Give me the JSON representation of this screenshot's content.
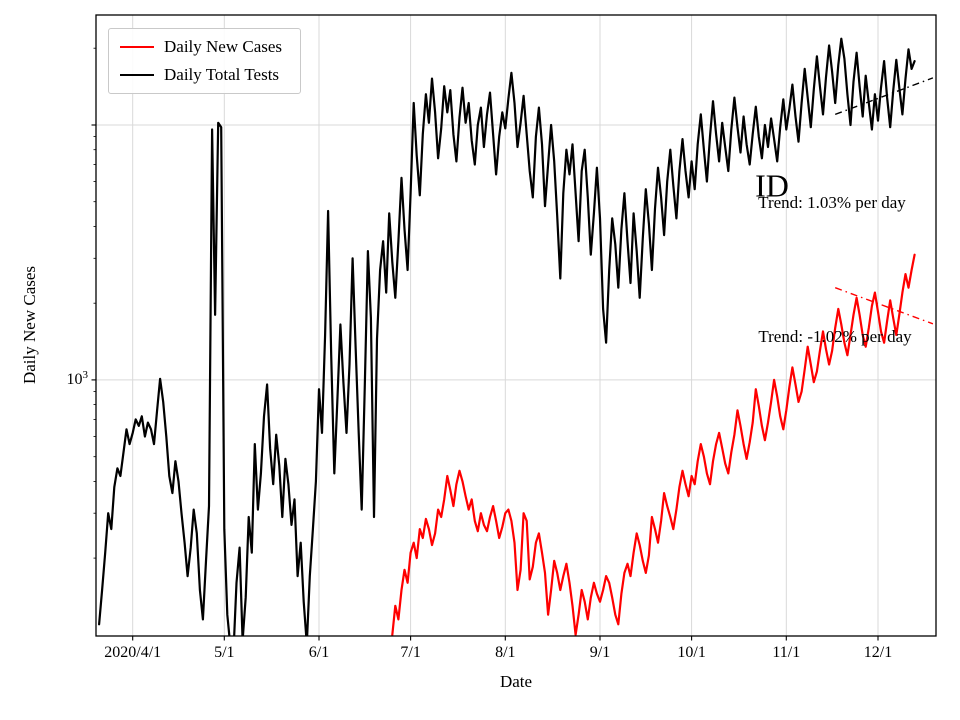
{
  "figure": {
    "background": "#ffffff"
  },
  "chart_data": {
    "type": "line",
    "title": "",
    "xlabel": "Date",
    "ylabel": "Daily New Cases",
    "yscale": "log",
    "ylim": [
      99,
      27000
    ],
    "xlim_days": [
      -12,
      263
    ],
    "x_epoch": "2020-04-01",
    "grid": true,
    "grid_color": "#d9d9d9",
    "axis_color": "#000000",
    "legend_position": "upper-left",
    "x_ticks": [
      {
        "day": 0,
        "label": "2020/4/1"
      },
      {
        "day": 30,
        "label": "5/1"
      },
      {
        "day": 61,
        "label": "6/1"
      },
      {
        "day": 91,
        "label": "7/1"
      },
      {
        "day": 122,
        "label": "8/1"
      },
      {
        "day": 153,
        "label": "9/1"
      },
      {
        "day": 183,
        "label": "10/1"
      },
      {
        "day": 214,
        "label": "11/1"
      },
      {
        "day": 244,
        "label": "12/1"
      }
    ],
    "y_ticks": [
      {
        "value": 1000,
        "base": "10",
        "exp": "3"
      }
    ],
    "y_grid": [
      1000,
      10000
    ],
    "series": [
      {
        "name": "Daily New Cases",
        "color": "#ff0000",
        "start_day": 85,
        "step": 1,
        "values": [
          100,
          130,
          115,
          150,
          180,
          160,
          210,
          230,
          200,
          260,
          240,
          285,
          260,
          225,
          250,
          310,
          290,
          340,
          420,
          370,
          320,
          390,
          440,
          400,
          350,
          310,
          340,
          280,
          255,
          300,
          270,
          255,
          290,
          320,
          280,
          240,
          265,
          300,
          310,
          280,
          230,
          150,
          180,
          300,
          280,
          165,
          185,
          230,
          250,
          210,
          175,
          120,
          150,
          195,
          175,
          150,
          170,
          190,
          160,
          130,
          100,
          120,
          150,
          135,
          115,
          140,
          160,
          145,
          135,
          150,
          170,
          160,
          140,
          120,
          110,
          145,
          175,
          190,
          170,
          210,
          250,
          225,
          195,
          175,
          205,
          290,
          260,
          230,
          280,
          360,
          320,
          290,
          260,
          310,
          380,
          440,
          390,
          350,
          420,
          390,
          480,
          560,
          500,
          430,
          390,
          480,
          560,
          620,
          540,
          470,
          430,
          520,
          610,
          760,
          660,
          560,
          490,
          570,
          680,
          920,
          790,
          660,
          580,
          680,
          820,
          1000,
          860,
          720,
          640,
          760,
          940,
          1120,
          960,
          820,
          900,
          1100,
          1350,
          1150,
          980,
          1080,
          1300,
          1550,
          1320,
          1150,
          1300,
          1600,
          1900,
          1650,
          1400,
          1250,
          1500,
          1800,
          2100,
          1800,
          1500,
          1350,
          1600,
          1950,
          2200,
          1850,
          1550,
          1400,
          1700,
          2050,
          1750,
          1500,
          1800,
          2200,
          2600,
          2300,
          2700,
          3100
        ]
      },
      {
        "name": "Daily Total Tests",
        "color": "#000000",
        "start_day": -11,
        "step": 1,
        "values": [
          110,
          150,
          210,
          300,
          260,
          380,
          450,
          420,
          520,
          640,
          560,
          620,
          700,
          660,
          720,
          600,
          680,
          640,
          560,
          760,
          1010,
          820,
          600,
          420,
          360,
          480,
          400,
          300,
          230,
          170,
          220,
          310,
          250,
          150,
          115,
          195,
          320,
          9600,
          1800,
          10200,
          9800,
          260,
          120,
          90,
          86,
          160,
          220,
          95,
          140,
          290,
          210,
          560,
          310,
          430,
          720,
          960,
          540,
          390,
          610,
          460,
          290,
          490,
          390,
          270,
          340,
          170,
          230,
          135,
          92,
          170,
          260,
          400,
          920,
          620,
          1500,
          4600,
          1250,
          430,
          820,
          1650,
          980,
          620,
          1150,
          3000,
          1350,
          620,
          310,
          950,
          3200,
          1750,
          290,
          1450,
          2700,
          3500,
          2200,
          4500,
          2900,
          2100,
          3500,
          6200,
          3900,
          2700,
          5400,
          12200,
          7600,
          5300,
          9200,
          13200,
          10200,
          15200,
          11200,
          7400,
          9700,
          14200,
          11200,
          13700,
          9200,
          7200,
          10700,
          14000,
          10200,
          12200,
          8700,
          7000,
          10000,
          11700,
          8200,
          11000,
          13400,
          9200,
          6400,
          9000,
          11200,
          9700,
          12700,
          16000,
          12200,
          8200,
          10200,
          13000,
          9200,
          6600,
          5200,
          9000,
          11700,
          8400,
          4800,
          7000,
          10000,
          7200,
          4400,
          2500,
          5400,
          8000,
          6400,
          8400,
          5400,
          3500,
          6600,
          8000,
          5200,
          3100,
          4500,
          6800,
          4300,
          1900,
          1400,
          2700,
          4300,
          3400,
          2300,
          3900,
          5400,
          3500,
          2400,
          4500,
          3200,
          2100,
          3600,
          5600,
          4100,
          2700,
          4700,
          6800,
          5200,
          3700,
          6000,
          8000,
          5800,
          4300,
          6600,
          8800,
          6600,
          5200,
          7200,
          5600,
          8400,
          11000,
          8000,
          6000,
          9000,
          12400,
          9200,
          7200,
          10200,
          8200,
          6600,
          9600,
          12800,
          9800,
          7800,
          10800,
          8400,
          7000,
          9200,
          11800,
          9000,
          7400,
          10000,
          8200,
          10600,
          8800,
          7200,
          9800,
          12600,
          9600,
          11600,
          14400,
          10800,
          8600,
          12200,
          16600,
          12800,
          9800,
          13800,
          18600,
          14200,
          11000,
          15400,
          20500,
          16200,
          12200,
          17200,
          21800,
          18200,
          13200,
          10000,
          14800,
          19200,
          14200,
          10800,
          15600,
          12200,
          9600,
          13200,
          10400,
          14000,
          17800,
          12800,
          9800,
          13600,
          18000,
          14000,
          11000,
          15200,
          19800,
          16600,
          17800
        ]
      }
    ],
    "trend_lines": [
      {
        "name": "tests-trend-line",
        "color": "#000000",
        "day1": 230,
        "v1": 11000,
        "day2": 262,
        "v2": 15300
      },
      {
        "name": "cases-trend-line",
        "color": "#ff0000",
        "day1": 230,
        "v1": 2300,
        "day2": 262,
        "v2": 1660
      }
    ],
    "annotations": [
      {
        "name": "state-code-label",
        "text": "ID",
        "x": 772,
        "y": 186,
        "font_px": 32,
        "color": "#000000"
      },
      {
        "name": "trend-up-label",
        "text": "Trend: 1.03% per day",
        "x": 832,
        "y": 203,
        "font_px": 17,
        "color": "#000000"
      },
      {
        "name": "trend-down-label",
        "text": "Trend: -1.02% per day",
        "x": 835,
        "y": 337,
        "font_px": 17,
        "color": "#000000"
      }
    ]
  }
}
